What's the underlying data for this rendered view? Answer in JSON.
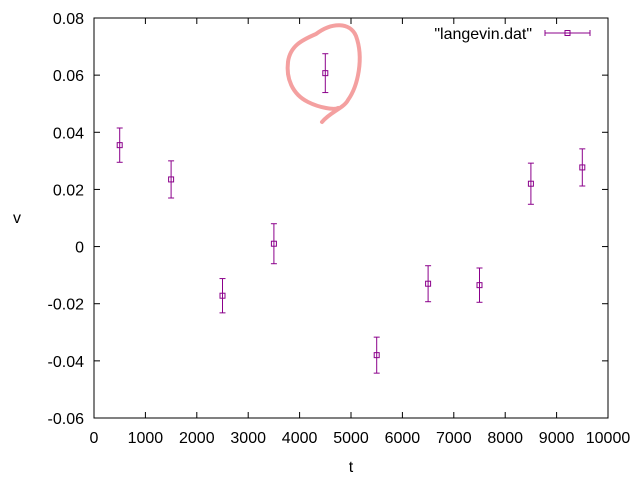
{
  "chart_data": {
    "type": "scatter",
    "title": "",
    "xlabel": "t",
    "ylabel": "v",
    "xlim": [
      0,
      10000
    ],
    "ylim": [
      -0.06,
      0.08
    ],
    "x_ticks": [
      0,
      1000,
      2000,
      3000,
      4000,
      5000,
      6000,
      7000,
      8000,
      9000,
      10000
    ],
    "x_tick_labels": [
      "0",
      "1000",
      "2000",
      "3000",
      "4000",
      "5000",
      "6000",
      "7000",
      "8000",
      "9000",
      "10000"
    ],
    "y_ticks": [
      -0.06,
      -0.04,
      -0.02,
      0,
      0.02,
      0.04,
      0.06,
      0.08
    ],
    "y_tick_labels": [
      "-0.06",
      "-0.04",
      "-0.02",
      "0",
      "0.02",
      "0.04",
      "0.06",
      "0.08"
    ],
    "grid": false,
    "legend_position": "top-right",
    "series": [
      {
        "name": "\"langevin.dat\"",
        "color": "#8b008b",
        "marker": "square",
        "error_bars": true,
        "points": [
          {
            "x": 500,
            "y": 0.0355,
            "err": 0.006
          },
          {
            "x": 1500,
            "y": 0.0235,
            "err": 0.0065
          },
          {
            "x": 2500,
            "y": -0.0172,
            "err": 0.006
          },
          {
            "x": 3500,
            "y": 0.001,
            "err": 0.007
          },
          {
            "x": 4500,
            "y": 0.0607,
            "err": 0.0068
          },
          {
            "x": 5500,
            "y": -0.038,
            "err": 0.0063
          },
          {
            "x": 6500,
            "y": -0.013,
            "err": 0.0063
          },
          {
            "x": 7500,
            "y": -0.0135,
            "err": 0.006
          },
          {
            "x": 8500,
            "y": 0.022,
            "err": 0.0072
          },
          {
            "x": 9500,
            "y": 0.0277,
            "err": 0.0065
          }
        ]
      }
    ],
    "annotations": [
      {
        "type": "hand-drawn-circle",
        "target_x": 4500,
        "target_y": 0.0607,
        "color": "#f08080"
      }
    ]
  }
}
